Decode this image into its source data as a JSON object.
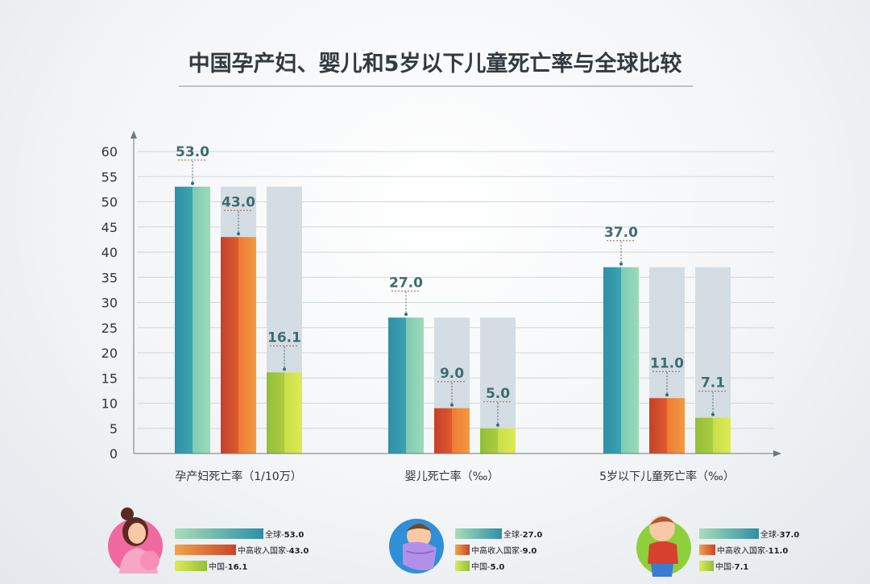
{
  "chart_data": {
    "type": "bar",
    "title": "中国孕产妇、婴儿和5岁以下儿童死亡率与全球比较",
    "categories": [
      "孕产妇死亡率（1/10万）",
      "婴儿死亡率（‰）",
      "5岁以下儿童死亡率（‰）"
    ],
    "ylim": [
      0,
      60
    ],
    "yticks": [
      "0",
      "5",
      "10",
      "15",
      "20",
      "25",
      "30",
      "35",
      "40",
      "45",
      "50",
      "55",
      "60"
    ],
    "grid": true,
    "series": [
      {
        "name": "全球",
        "values": [
          53.0,
          27.0,
          37.0
        ],
        "labels": [
          "53.0",
          "27.0",
          "37.0"
        ]
      },
      {
        "name": "中高收入国家",
        "values": [
          43.0,
          9.0,
          11.0
        ],
        "labels": [
          "43.0",
          "9.0",
          "11.0"
        ]
      },
      {
        "name": "中国",
        "values": [
          16.1,
          5.0,
          7.1
        ],
        "labels": [
          "16.1",
          "5.0",
          "7.1"
        ]
      }
    ],
    "legends": [
      [
        {
          "text": "全球-",
          "value": "53.0"
        },
        {
          "text": "中高收入国家-",
          "value": "43.0"
        },
        {
          "text": "中国-",
          "value": "16.1"
        }
      ],
      [
        {
          "text": "全球-",
          "value": "27.0"
        },
        {
          "text": "中高收入国家-",
          "value": "9.0"
        },
        {
          "text": "中国-",
          "value": "5.0"
        }
      ],
      [
        {
          "text": "全球-",
          "value": "37.0"
        },
        {
          "text": "中高收入国家-",
          "value": "11.0"
        },
        {
          "text": "中国-",
          "value": "7.1"
        }
      ]
    ],
    "icons": [
      "pregnant-woman-icon",
      "swaddled-baby-icon",
      "toddler-icon"
    ],
    "colors": {
      "global": [
        "#2f8fa6",
        "#8fd3b5"
      ],
      "middle_high": [
        "#c9462a",
        "#f08a3a"
      ],
      "china": [
        "#9cc43a",
        "#d6e650"
      ],
      "ghost": "#d3dde3",
      "label": "#3e6c70"
    }
  }
}
